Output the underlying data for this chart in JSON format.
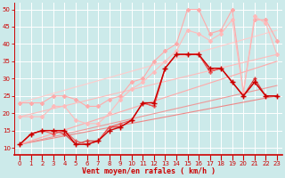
{
  "xlabel": "Vent moyen/en rafales ( km/h )",
  "xlim": [
    -0.5,
    23.5
  ],
  "ylim": [
    8,
    52
  ],
  "yticks": [
    10,
    15,
    20,
    25,
    30,
    35,
    40,
    45,
    50
  ],
  "xticks": [
    0,
    1,
    2,
    3,
    4,
    5,
    6,
    7,
    8,
    9,
    10,
    11,
    12,
    13,
    14,
    15,
    16,
    17,
    18,
    19,
    20,
    21,
    22,
    23
  ],
  "bg_color": "#cceaea",
  "grid_color": "#b0d8d8",
  "spine_color": "#cc0000",
  "tick_color": "#cc0000",
  "xlabel_color": "#cc0000",
  "lines": [
    {
      "x": [
        0,
        1,
        2,
        3,
        4,
        5,
        6,
        7,
        8,
        9,
        10,
        11,
        12,
        13,
        14,
        15,
        16,
        17,
        18,
        19,
        20,
        21,
        22,
        23
      ],
      "y": [
        11,
        14,
        15,
        15,
        15,
        11,
        11,
        12,
        15,
        16,
        18,
        23,
        23,
        33,
        37,
        37,
        37,
        33,
        33,
        29,
        25,
        29,
        25,
        25
      ],
      "color": "#cc0000",
      "marker": "+",
      "lw": 1.0,
      "ms": 4,
      "zorder": 5
    },
    {
      "x": [
        0,
        1,
        2,
        3,
        4,
        5,
        6,
        7,
        8,
        9,
        10,
        11,
        12,
        13,
        14,
        15,
        16,
        17,
        18,
        19,
        20,
        21,
        22,
        23
      ],
      "y": [
        11,
        14,
        15,
        15,
        14,
        11,
        12,
        12,
        16,
        16,
        18,
        23,
        22,
        33,
        37,
        37,
        37,
        32,
        33,
        29,
        25,
        30,
        25,
        25
      ],
      "color": "#dd3333",
      "marker": "+",
      "lw": 0.8,
      "ms": 3.5,
      "zorder": 4
    },
    {
      "x": [
        0,
        1,
        2,
        3,
        4,
        5,
        6,
        7,
        8,
        9,
        10,
        11,
        12,
        13,
        14,
        15,
        16,
        17,
        18,
        19,
        20,
        21,
        22,
        23
      ],
      "y": [
        11,
        14,
        15,
        14,
        15,
        12,
        11,
        12,
        16,
        17,
        18,
        23,
        22,
        33,
        37,
        37,
        37,
        32,
        33,
        29,
        25,
        29,
        25,
        25
      ],
      "color": "#ee5555",
      "marker": "+",
      "lw": 0.8,
      "ms": 3.5,
      "zorder": 4
    },
    {
      "x": [
        0,
        23
      ],
      "y": [
        11,
        25
      ],
      "color": "#ee8888",
      "marker": null,
      "lw": 0.8,
      "ms": 0,
      "zorder": 2
    },
    {
      "x": [
        0,
        23
      ],
      "y": [
        11,
        28
      ],
      "color": "#ee9999",
      "marker": null,
      "lw": 0.8,
      "ms": 0,
      "zorder": 2
    },
    {
      "x": [
        0,
        23
      ],
      "y": [
        11,
        35
      ],
      "color": "#ffaaaa",
      "marker": null,
      "lw": 0.8,
      "ms": 0,
      "zorder": 2
    },
    {
      "x": [
        0,
        23
      ],
      "y": [
        19,
        37
      ],
      "color": "#ffbbbb",
      "marker": null,
      "lw": 0.8,
      "ms": 0,
      "zorder": 2
    },
    {
      "x": [
        0,
        23
      ],
      "y": [
        23,
        44
      ],
      "color": "#ffcccc",
      "marker": null,
      "lw": 0.8,
      "ms": 0,
      "zorder": 2
    },
    {
      "x": [
        0,
        1,
        2,
        3,
        4,
        5,
        6,
        7,
        8,
        9,
        10,
        11,
        12,
        13,
        14,
        15,
        16,
        17,
        18,
        19,
        20,
        21,
        22,
        23
      ],
      "y": [
        23,
        23,
        23,
        25,
        25,
        24,
        22,
        22,
        24,
        25,
        29,
        30,
        35,
        38,
        40,
        50,
        50,
        43,
        44,
        50,
        26,
        47,
        47,
        41
      ],
      "color": "#ffaaaa",
      "marker": "D",
      "lw": 0.8,
      "ms": 2,
      "zorder": 3
    },
    {
      "x": [
        0,
        1,
        2,
        3,
        4,
        5,
        6,
        7,
        8,
        9,
        10,
        11,
        12,
        13,
        14,
        15,
        16,
        17,
        18,
        19,
        20,
        21,
        22,
        23
      ],
      "y": [
        19,
        19,
        19,
        22,
        22,
        18,
        17,
        17,
        20,
        24,
        27,
        29,
        32,
        35,
        38,
        44,
        43,
        41,
        43,
        47,
        26,
        48,
        46,
        37
      ],
      "color": "#ffbbbb",
      "marker": "D",
      "lw": 0.8,
      "ms": 2,
      "zorder": 3
    }
  ]
}
